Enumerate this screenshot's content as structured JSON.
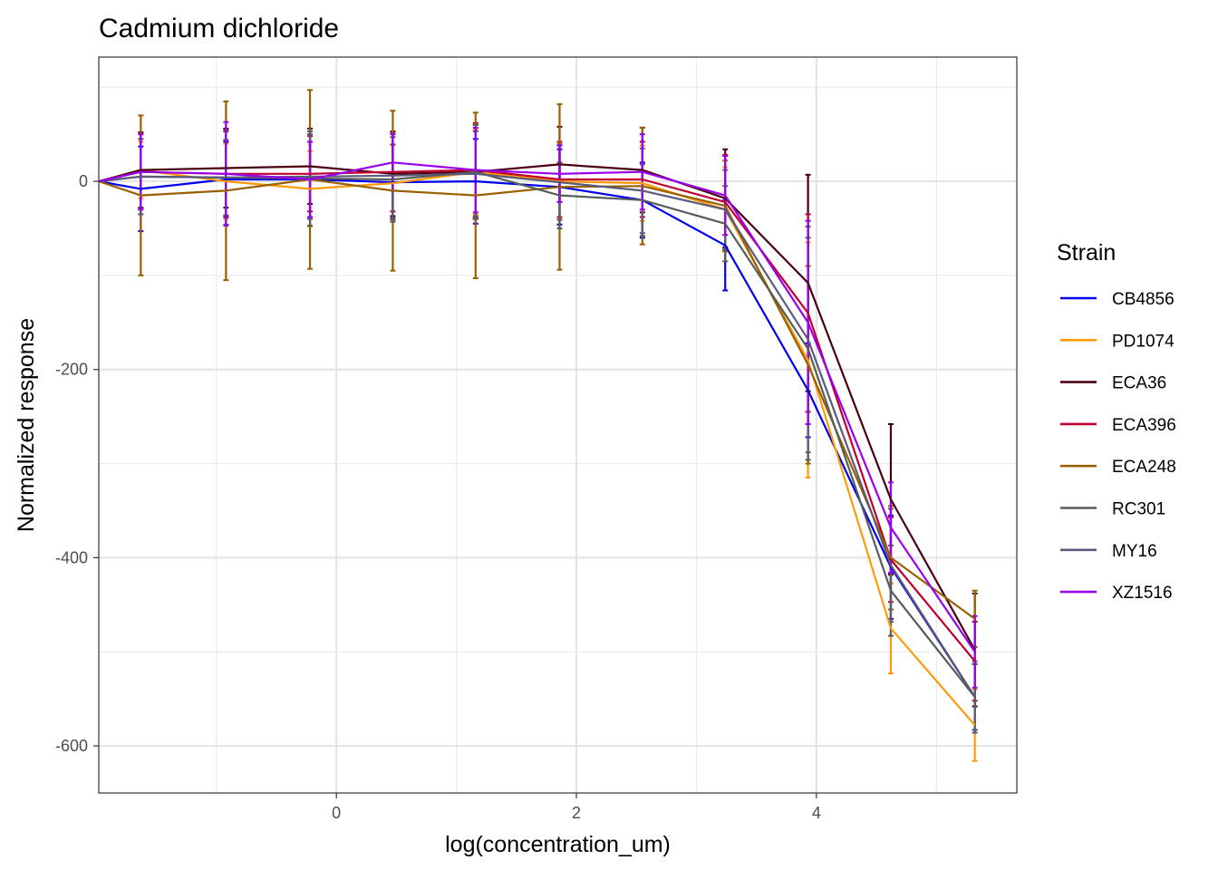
{
  "chart_data": {
    "type": "line",
    "title": "Cadmium dichloride",
    "xlabel": "log(concentration_um)",
    "ylabel": "Normalized response",
    "xlim": [
      -1.98,
      5.67
    ],
    "ylim": [
      -650,
      132
    ],
    "x_ticks": [
      0,
      2,
      4
    ],
    "x_tick_labels": [
      "0",
      "2",
      "4"
    ],
    "y_ticks": [
      0,
      -200,
      -400,
      -600
    ],
    "y_tick_labels": [
      "0",
      "-200",
      "-400",
      "-600"
    ],
    "grid": true,
    "legend_title": "Strain",
    "legend_position": "right",
    "x": [
      -1.98,
      -1.63,
      -0.92,
      -0.22,
      0.47,
      1.16,
      1.86,
      2.55,
      3.24,
      3.93,
      4.62,
      5.32
    ],
    "series": [
      {
        "name": "CB4856",
        "color": "#0000ee",
        "values": [
          0,
          -8,
          2,
          2,
          -1,
          0,
          -6,
          -20,
          -68,
          -222,
          -410,
          -548
        ],
        "errors": [
          0,
          45,
          40,
          40,
          40,
          45,
          40,
          40,
          48,
          50,
          55,
          35
        ]
      },
      {
        "name": "PD1074",
        "color": "#ff9a0a",
        "values": [
          0,
          12,
          0,
          -8,
          -2,
          10,
          0,
          -2,
          -30,
          -190,
          -475,
          -578
        ],
        "errors": [
          0,
          30,
          40,
          40,
          40,
          45,
          40,
          40,
          45,
          125,
          48,
          38
        ]
      },
      {
        "name": "ECA36",
        "color": "#4b0010",
        "values": [
          0,
          12,
          14,
          16,
          8,
          10,
          18,
          12,
          -18,
          -108,
          -338,
          -498
        ],
        "errors": [
          0,
          40,
          42,
          40,
          45,
          50,
          40,
          45,
          52,
          115,
          80,
          60
        ]
      },
      {
        "name": "ECA396",
        "color": "#c0002e",
        "values": [
          0,
          10,
          8,
          8,
          10,
          12,
          2,
          2,
          -22,
          -140,
          -402,
          -510
        ],
        "errors": [
          0,
          40,
          45,
          40,
          42,
          50,
          40,
          40,
          50,
          105,
          45,
          42
        ]
      },
      {
        "name": "ECA248",
        "color": "#996000",
        "values": [
          0,
          -15,
          -10,
          2,
          -10,
          -15,
          -6,
          -5,
          -26,
          -195,
          -400,
          -465
        ],
        "errors": [
          0,
          85,
          95,
          95,
          85,
          88,
          88,
          62,
          48,
          105,
          55,
          30
        ]
      },
      {
        "name": "RC301",
        "color": "#555e5a",
        "values": [
          0,
          5,
          4,
          3,
          2,
          10,
          -15,
          -20,
          -45,
          -178,
          -435,
          -548
        ],
        "errors": [
          0,
          40,
          50,
          50,
          45,
          50,
          35,
          38,
          40,
          118,
          48,
          35
        ]
      },
      {
        "name": "MY16",
        "color": "#5a5a7a",
        "values": [
          0,
          5,
          4,
          5,
          6,
          8,
          -1,
          -10,
          -30,
          -168,
          -408,
          -548
        ],
        "errors": [
          0,
          40,
          40,
          45,
          45,
          45,
          40,
          45,
          42,
          120,
          60,
          38
        ]
      },
      {
        "name": "XZ1516",
        "color": "#9900ee",
        "values": [
          0,
          10,
          8,
          2,
          20,
          12,
          8,
          10,
          -15,
          -150,
          -368,
          -500
        ],
        "errors": [
          0,
          40,
          55,
          40,
          30,
          45,
          30,
          40,
          42,
          108,
          48,
          38
        ]
      }
    ]
  }
}
